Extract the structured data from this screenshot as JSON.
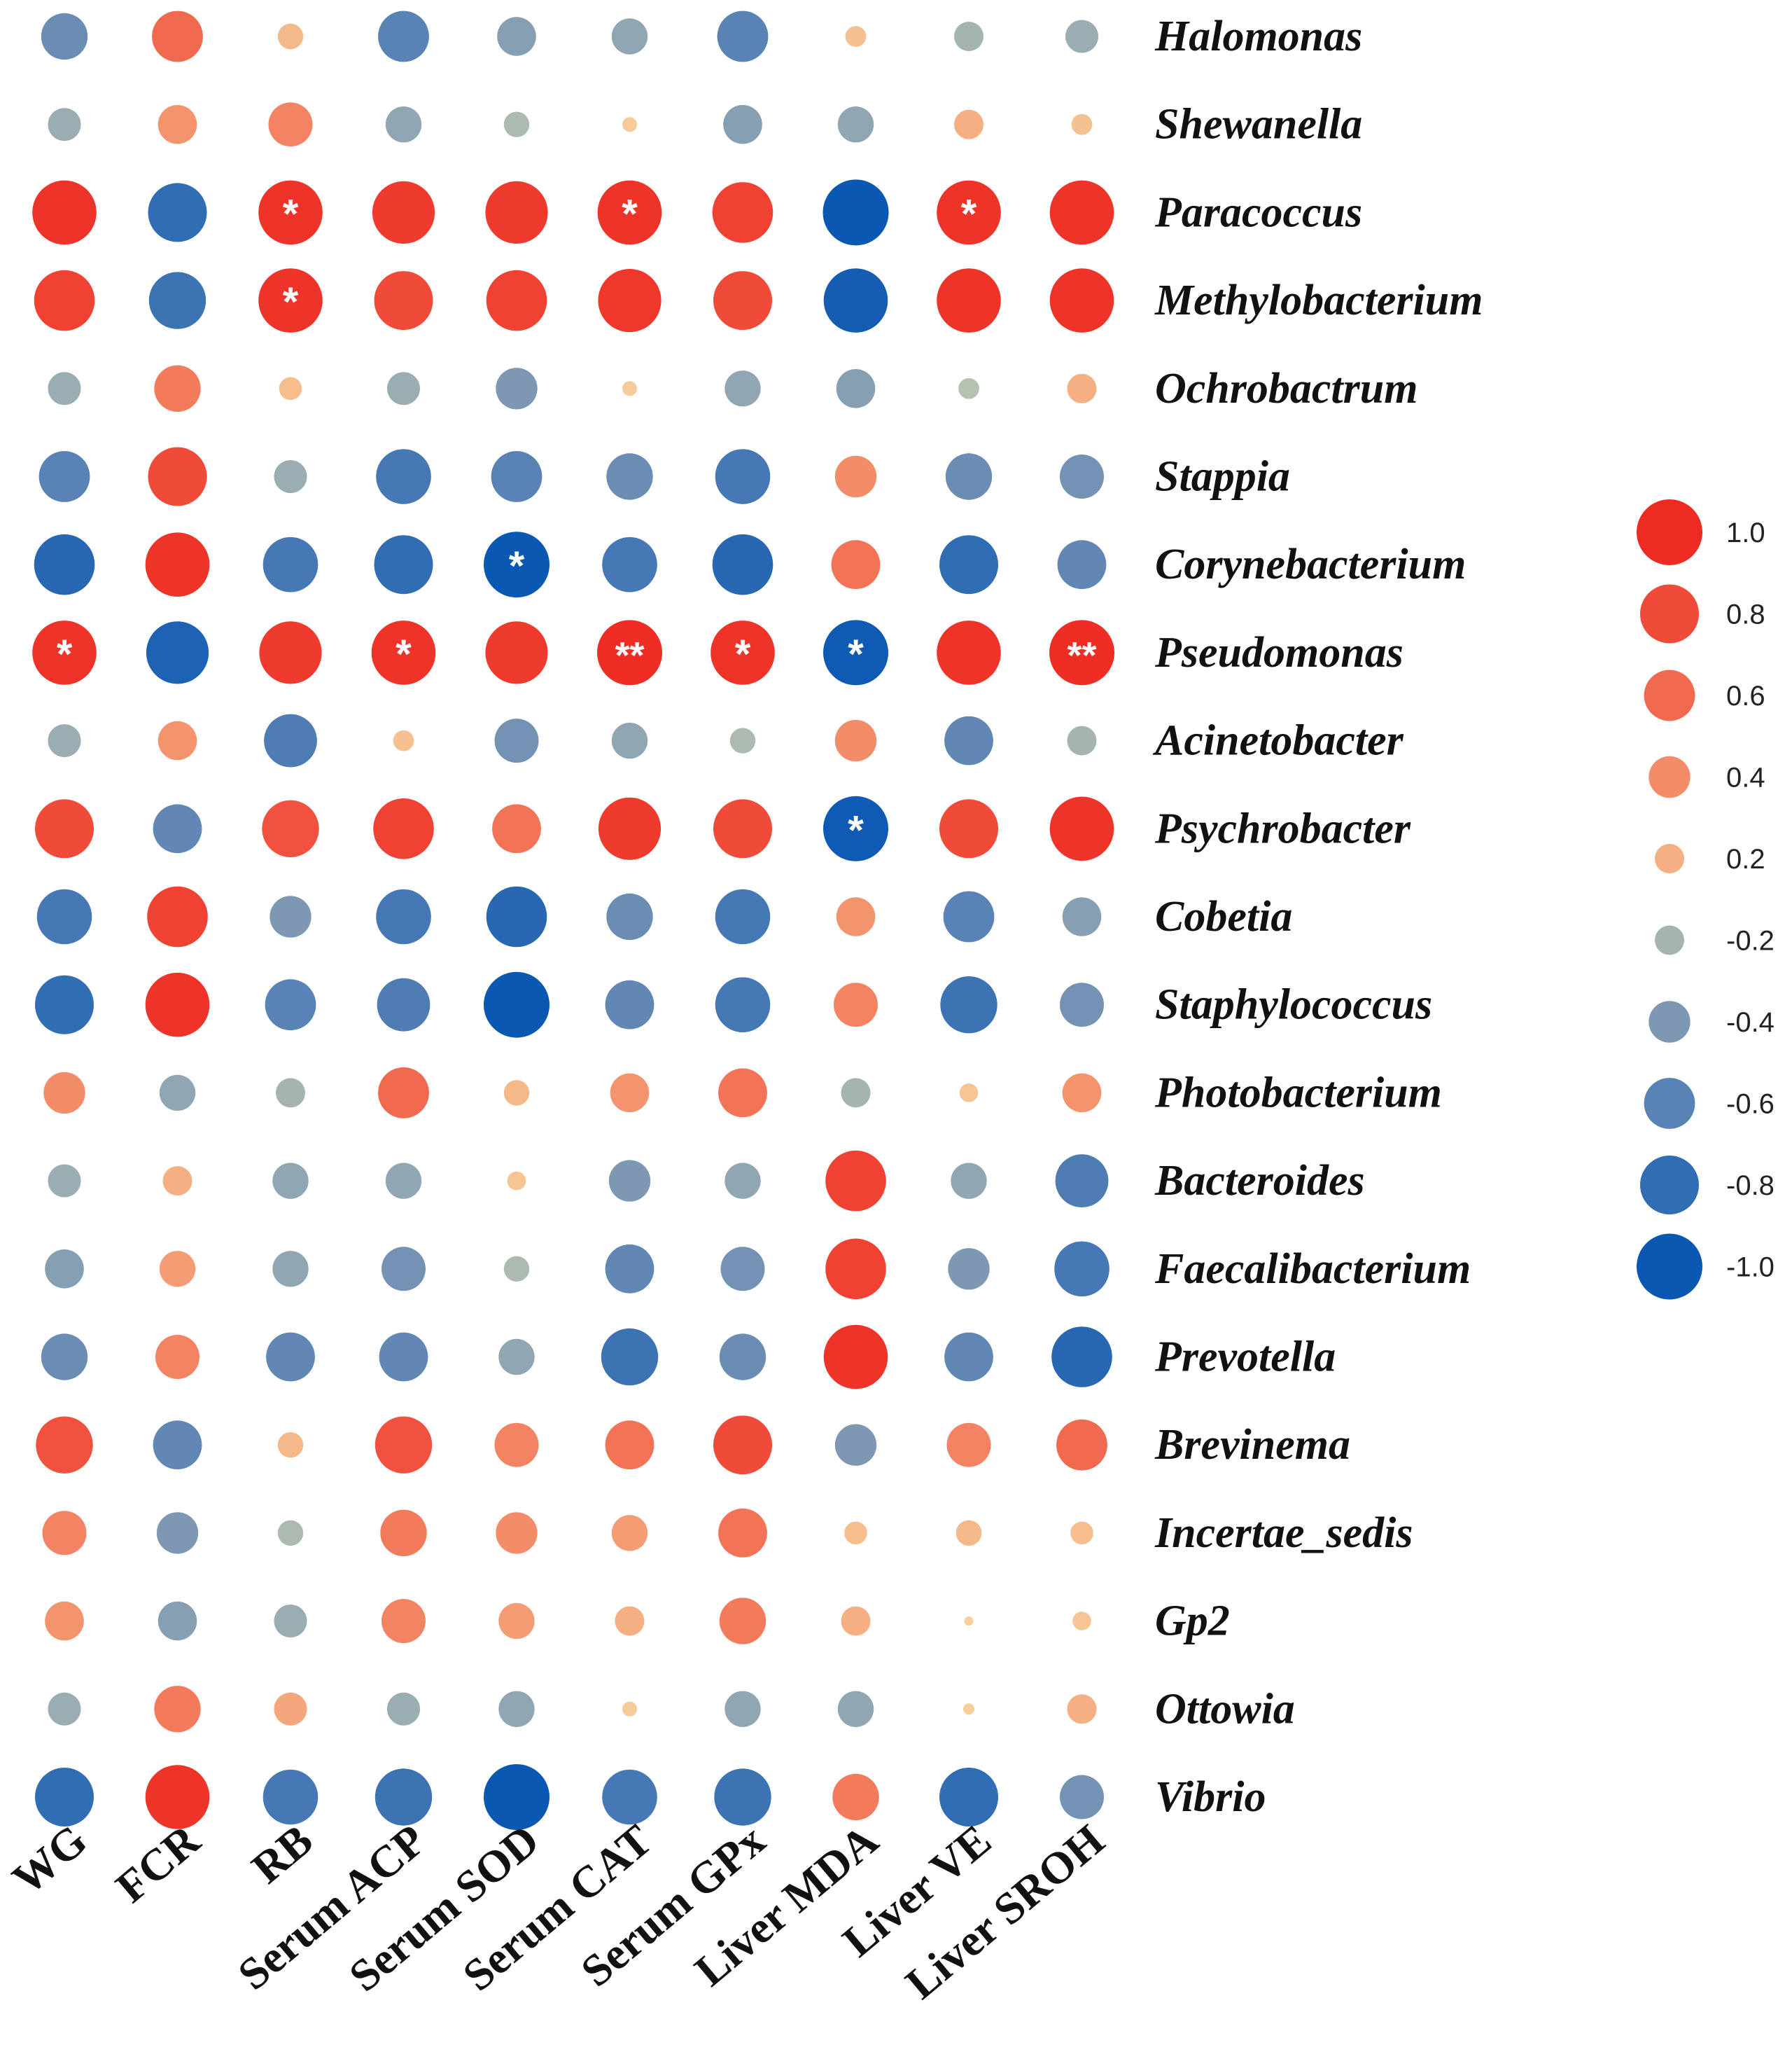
{
  "chart_data": {
    "type": "heatmap",
    "subtype": "correlation-bubble",
    "columns": [
      "WG",
      "FCR",
      "RB",
      "Serum ACP",
      "Serum SOD",
      "Serum CAT",
      "Serum GPx",
      "Liver MDA",
      "Liver VE",
      "Liver SROH"
    ],
    "rows": [
      "Halomonas",
      "Shewanella",
      "Paracoccus",
      "Methylobacterium",
      "Ochrobactrum",
      "Stappia",
      "Corynebacterium",
      "Pseudomonas",
      "Acinetobacter",
      "Psychrobacter",
      "Cobetia",
      "Staphylococcus",
      "Photobacterium",
      "Bacteroides",
      "Faecalibacterium",
      "Prevotella",
      "Brevinema",
      "Incertae_sedis",
      "Gp2",
      "Ottowia",
      "Vibrio"
    ],
    "values": [
      [
        -0.5,
        0.6,
        0.15,
        -0.6,
        -0.35,
        -0.3,
        -0.6,
        0.1,
        -0.2,
        -0.25
      ],
      [
        -0.25,
        0.35,
        0.45,
        -0.3,
        -0.15,
        0.05,
        -0.35,
        -0.3,
        0.2,
        0.1
      ],
      [
        0.95,
        -0.8,
        0.95,
        0.9,
        0.9,
        0.95,
        0.85,
        -1.0,
        0.95,
        0.95
      ],
      [
        0.85,
        -0.75,
        0.95,
        0.8,
        0.85,
        0.92,
        0.8,
        -0.95,
        0.95,
        0.95
      ],
      [
        -0.25,
        0.5,
        0.12,
        -0.25,
        -0.4,
        0.05,
        -0.3,
        -0.35,
        -0.1,
        0.2
      ],
      [
        -0.6,
        0.8,
        -0.25,
        -0.7,
        -0.6,
        -0.5,
        -0.7,
        0.4,
        -0.5,
        -0.45
      ],
      [
        -0.85,
        0.95,
        -0.7,
        -0.8,
        -1.0,
        -0.7,
        -0.85,
        0.55,
        -0.8,
        -0.55
      ],
      [
        0.95,
        -0.9,
        0.9,
        0.95,
        0.9,
        0.98,
        0.95,
        -0.98,
        0.95,
        0.98
      ],
      [
        -0.25,
        0.35,
        -0.65,
        0.1,
        -0.45,
        -0.3,
        -0.15,
        0.4,
        -0.55,
        -0.2
      ],
      [
        0.8,
        -0.55,
        0.75,
        0.85,
        0.55,
        0.9,
        0.8,
        -0.98,
        0.8,
        0.95
      ],
      [
        -0.7,
        0.85,
        -0.4,
        -0.7,
        -0.85,
        -0.5,
        -0.7,
        0.35,
        -0.6,
        -0.35
      ],
      [
        -0.8,
        0.95,
        -0.6,
        -0.65,
        -1.0,
        -0.55,
        -0.7,
        0.45,
        -0.75,
        -0.45
      ],
      [
        0.4,
        -0.3,
        -0.2,
        0.6,
        0.15,
        0.35,
        0.55,
        -0.2,
        0.08,
        0.35
      ],
      [
        -0.25,
        0.2,
        -0.3,
        -0.3,
        0.08,
        -0.4,
        -0.3,
        0.85,
        -0.3,
        -0.65
      ],
      [
        -0.35,
        0.3,
        -0.3,
        -0.45,
        -0.15,
        -0.55,
        -0.45,
        0.85,
        -0.4,
        -0.7
      ],
      [
        -0.5,
        0.45,
        -0.55,
        -0.55,
        -0.3,
        -0.75,
        -0.5,
        0.95,
        -0.55,
        -0.85
      ],
      [
        0.75,
        -0.55,
        0.15,
        0.75,
        0.45,
        0.55,
        0.8,
        -0.4,
        0.45,
        0.6
      ],
      [
        0.45,
        -0.4,
        -0.15,
        0.5,
        0.4,
        0.3,
        0.55,
        0.12,
        0.15,
        0.12
      ],
      [
        0.35,
        -0.35,
        -0.25,
        0.45,
        0.3,
        0.2,
        0.5,
        0.2,
        0.02,
        0.08
      ],
      [
        -0.25,
        0.5,
        0.25,
        -0.25,
        -0.3,
        0.05,
        -0.3,
        -0.3,
        0.03,
        0.2
      ],
      [
        -0.8,
        0.95,
        -0.7,
        -0.75,
        -1.0,
        -0.7,
        -0.75,
        0.5,
        -0.8,
        -0.45
      ]
    ],
    "significance": [
      [
        "",
        "",
        "",
        "",
        "",
        "",
        "",
        "",
        "",
        ""
      ],
      [
        "",
        "",
        "",
        "",
        "",
        "",
        "",
        "",
        "",
        ""
      ],
      [
        "",
        "",
        "*",
        "",
        "",
        "*",
        "",
        "",
        "*",
        ""
      ],
      [
        "",
        "",
        "*",
        "",
        "",
        "",
        "",
        "",
        "",
        ""
      ],
      [
        "",
        "",
        "",
        "",
        "",
        "",
        "",
        "",
        "",
        ""
      ],
      [
        "",
        "",
        "",
        "",
        "",
        "",
        "",
        "",
        "",
        ""
      ],
      [
        "",
        "",
        "",
        "",
        "*",
        "",
        "",
        "",
        "",
        ""
      ],
      [
        "*",
        "",
        "",
        "*",
        "",
        "**",
        "*",
        "*",
        "",
        "**"
      ],
      [
        "",
        "",
        "",
        "",
        "",
        "",
        "",
        "",
        "",
        ""
      ],
      [
        "",
        "",
        "",
        "",
        "",
        "",
        "",
        "*",
        "",
        ""
      ],
      [
        "",
        "",
        "",
        "",
        "",
        "",
        "",
        "",
        "",
        ""
      ],
      [
        "",
        "",
        "",
        "",
        "",
        "",
        "",
        "",
        "",
        ""
      ],
      [
        "",
        "",
        "",
        "",
        "",
        "",
        "",
        "",
        "",
        ""
      ],
      [
        "",
        "",
        "",
        "",
        "",
        "",
        "",
        "",
        "",
        ""
      ],
      [
        "",
        "",
        "",
        "",
        "",
        "",
        "",
        "",
        "",
        ""
      ],
      [
        "",
        "",
        "",
        "",
        "",
        "",
        "",
        "",
        "",
        ""
      ],
      [
        "",
        "",
        "",
        "",
        "",
        "",
        "",
        "",
        "",
        ""
      ],
      [
        "",
        "",
        "",
        "",
        "",
        "",
        "",
        "",
        "",
        ""
      ],
      [
        "",
        "",
        "",
        "",
        "",
        "",
        "",
        "",
        "",
        ""
      ],
      [
        "",
        "",
        "",
        "",
        "",
        "",
        "",
        "",
        "",
        ""
      ],
      [
        "",
        "",
        "",
        "",
        "",
        "",
        "",
        "",
        "",
        ""
      ]
    ],
    "legend": {
      "values": [
        1.0,
        0.8,
        0.6,
        0.4,
        0.2,
        -0.2,
        -0.4,
        -0.6,
        -0.8,
        -1.0
      ],
      "labels": [
        "1.0",
        "0.8",
        "0.6",
        "0.4",
        "0.2",
        "-0.2",
        "-0.4",
        "-0.6",
        "-0.8",
        "-1.0"
      ],
      "placement": "right"
    },
    "value_range": [
      -1,
      1
    ],
    "colors": {
      "positive_strong": "#ee2b22",
      "positive_weak": "#f7d7a0",
      "neutral_negative": "#c9cfae",
      "negative_strong": "#0b58b3"
    }
  }
}
